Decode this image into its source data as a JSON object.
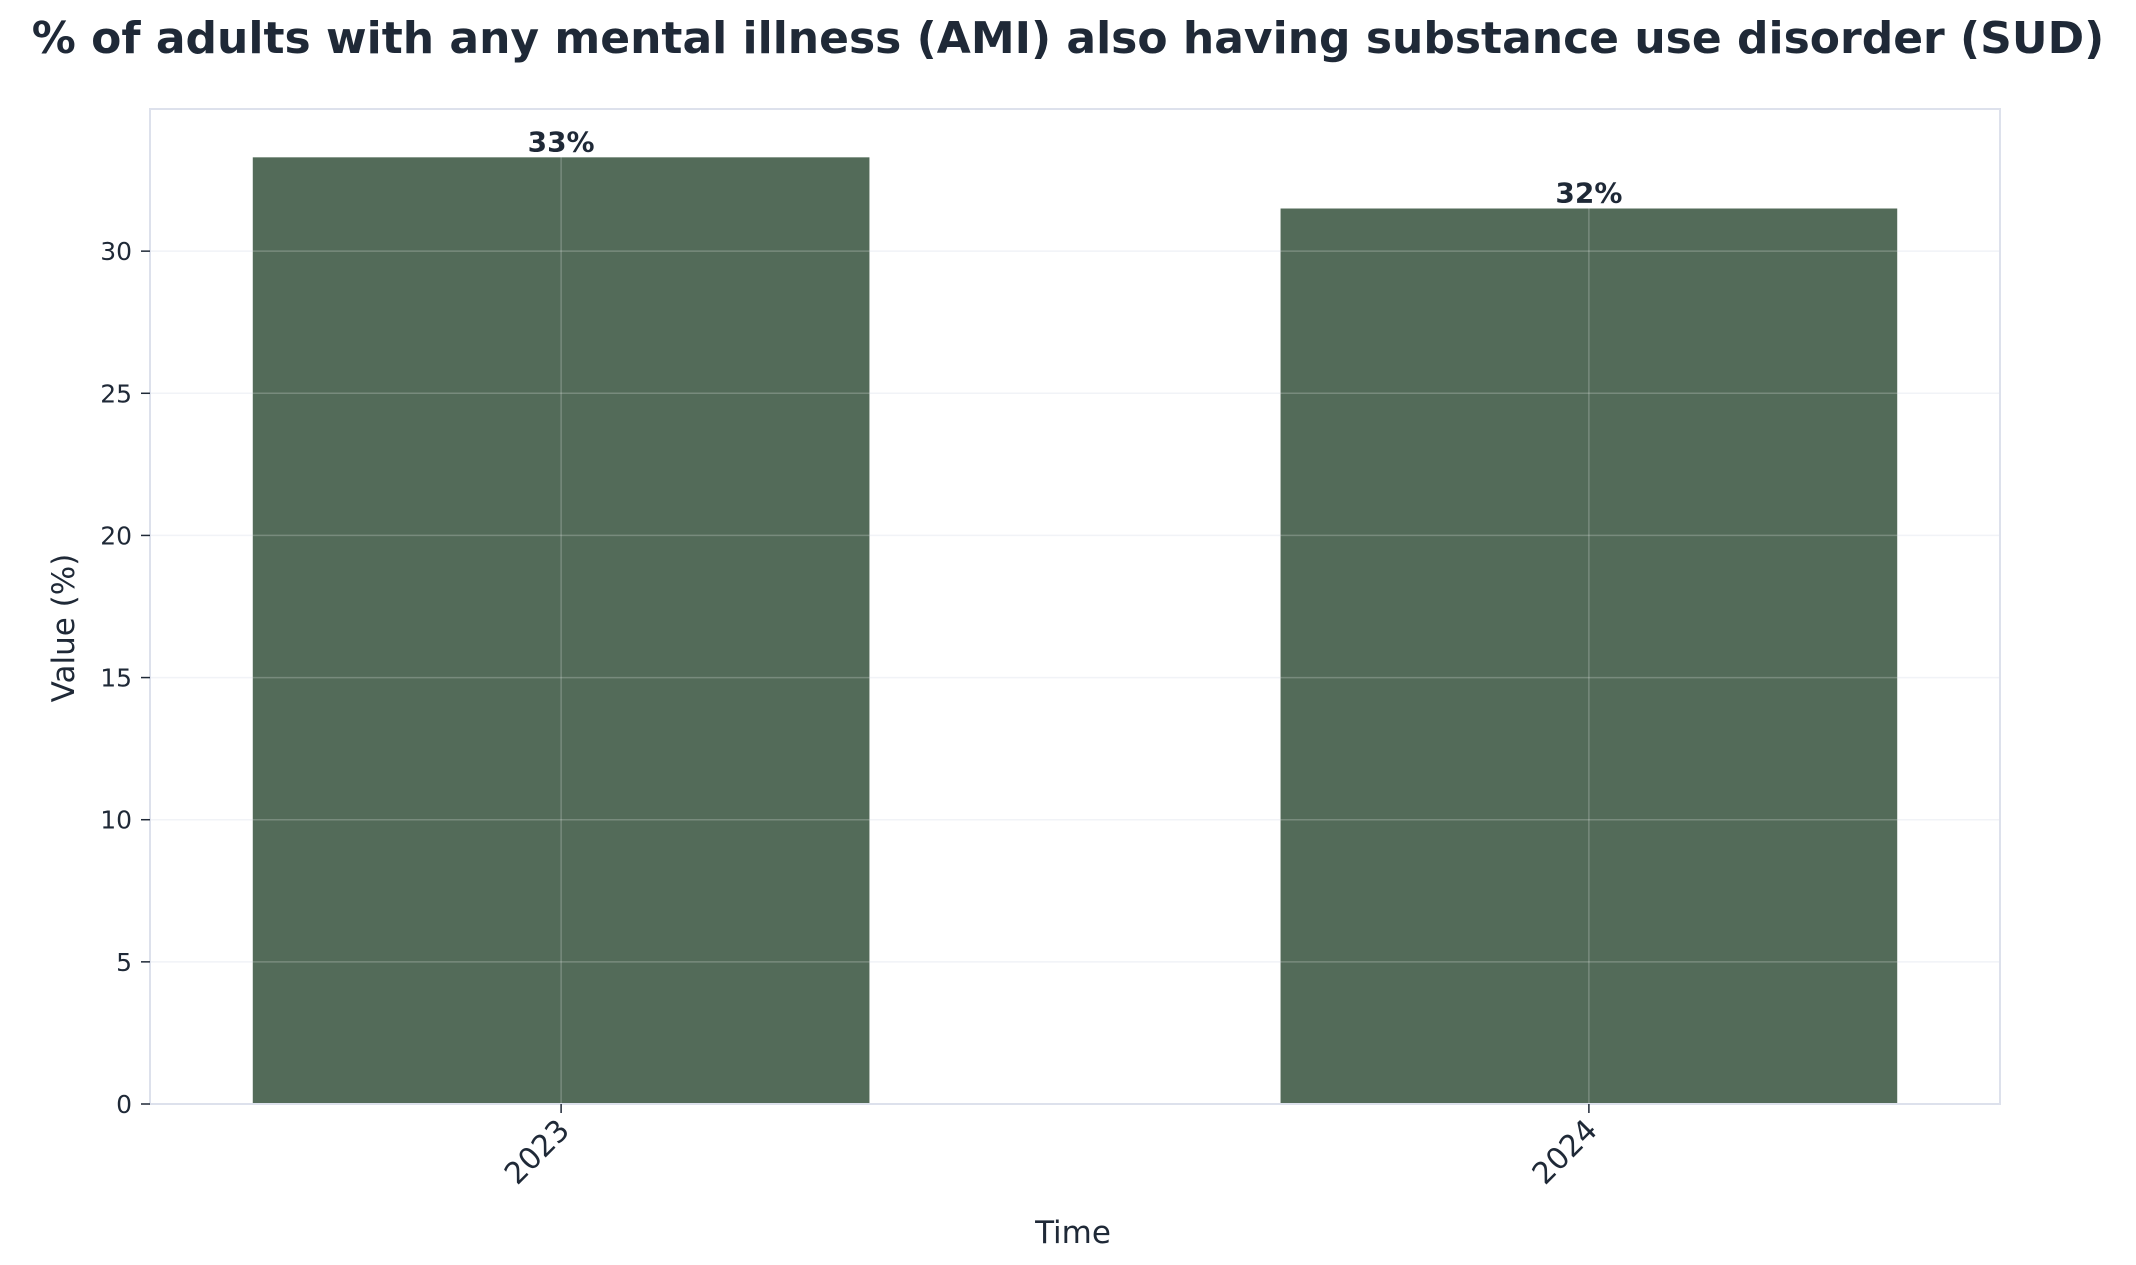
{
  "chart_data": {
    "type": "bar",
    "title": "% of adults with any mental illness (AMI) also having substance use disorder (SUD)",
    "xlabel": "Time",
    "ylabel": "Value (%)",
    "categories": [
      "2023",
      "2024"
    ],
    "values": [
      33.3,
      31.5
    ],
    "data_labels": [
      "33%",
      "32%"
    ],
    "ylim": [
      0,
      35
    ],
    "yticks": [
      0,
      5,
      10,
      15,
      20,
      25,
      30
    ],
    "grid": true,
    "legend": "none",
    "colors": {
      "bar": "#536b59",
      "text": "#1f2937",
      "frame": "#dde1ec",
      "grid": "#eef0f5",
      "grid_over_bar": "#ffffff"
    }
  }
}
